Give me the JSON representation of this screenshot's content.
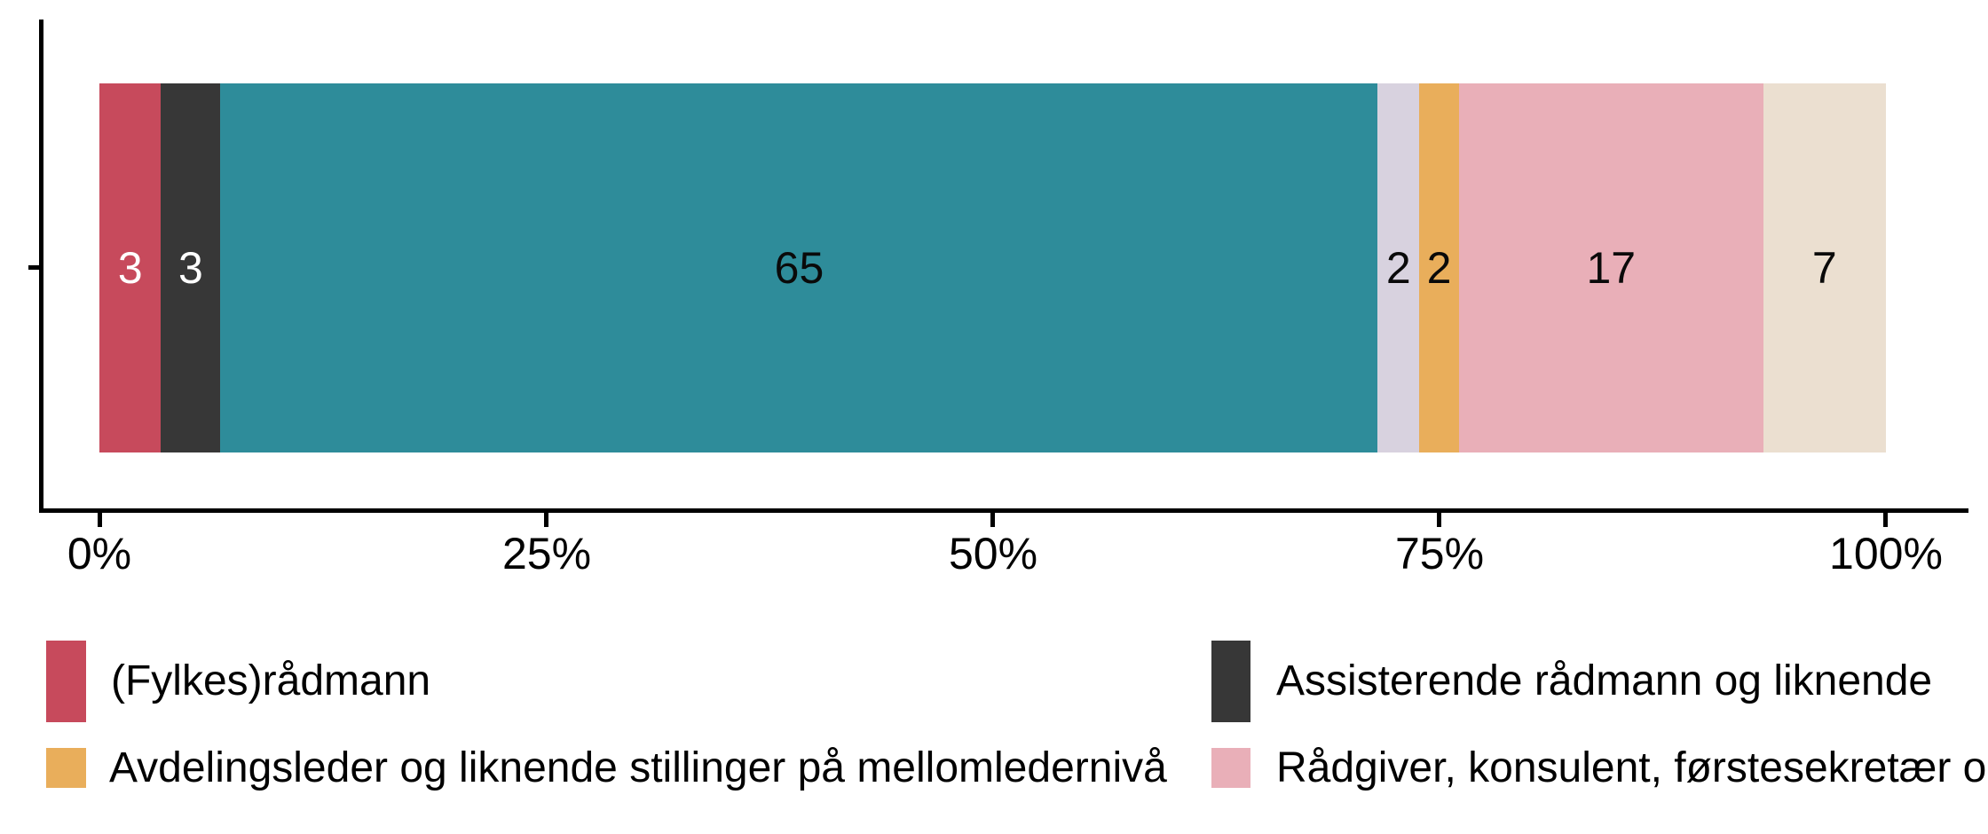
{
  "chart_data": {
    "type": "bar",
    "orientation": "horizontal",
    "stacked": true,
    "title": "",
    "xlabel": "",
    "ylabel": "",
    "x_axis": {
      "unit": "percent",
      "range": [
        0,
        100
      ],
      "ticks": [
        "0%",
        "25%",
        "50%",
        "75%",
        "100%"
      ]
    },
    "categories": [
      ""
    ],
    "segments": [
      {
        "value": 3,
        "label": "3",
        "color": "#C74A5C",
        "label_color": "#FFFFFF",
        "width_pct": 3.45
      },
      {
        "value": 3,
        "label": "3",
        "color": "#373737",
        "label_color": "#FFFFFF",
        "width_pct": 3.33
      },
      {
        "value": 65,
        "label": "65",
        "color": "#2E8C9A",
        "label_color": "#0A0A0A",
        "width_pct": 64.78
      },
      {
        "value": 2,
        "label": "2",
        "color": "#D8D2DF",
        "label_color": "#0A0A0A",
        "width_pct": 2.32
      },
      {
        "value": 2,
        "label": "2",
        "color": "#E9AE5B",
        "label_color": "#0A0A0A",
        "width_pct": 2.22
      },
      {
        "value": 17,
        "label": "17",
        "color": "#E9AFB8",
        "label_color": "#0A0A0A",
        "width_pct": 17.03
      },
      {
        "value": 7,
        "label": "7",
        "color": "#EBDFD0",
        "label_color": "#0A0A0A",
        "width_pct": 6.87
      }
    ],
    "legend": {
      "position": "bottom",
      "items": [
        {
          "label": "(Fylkes)rådmann",
          "color": "#C74A5C"
        },
        {
          "label": "Assisterende rådmann og liknende",
          "color": "#373737"
        },
        {
          "label": "Avdelingsleder og liknende stillinger på mellomledernivå",
          "color": "#E9AE5B"
        },
        {
          "label": "Rådgiver, konsulent, førstesekretær o",
          "color": "#E9AFB8"
        }
      ]
    }
  }
}
